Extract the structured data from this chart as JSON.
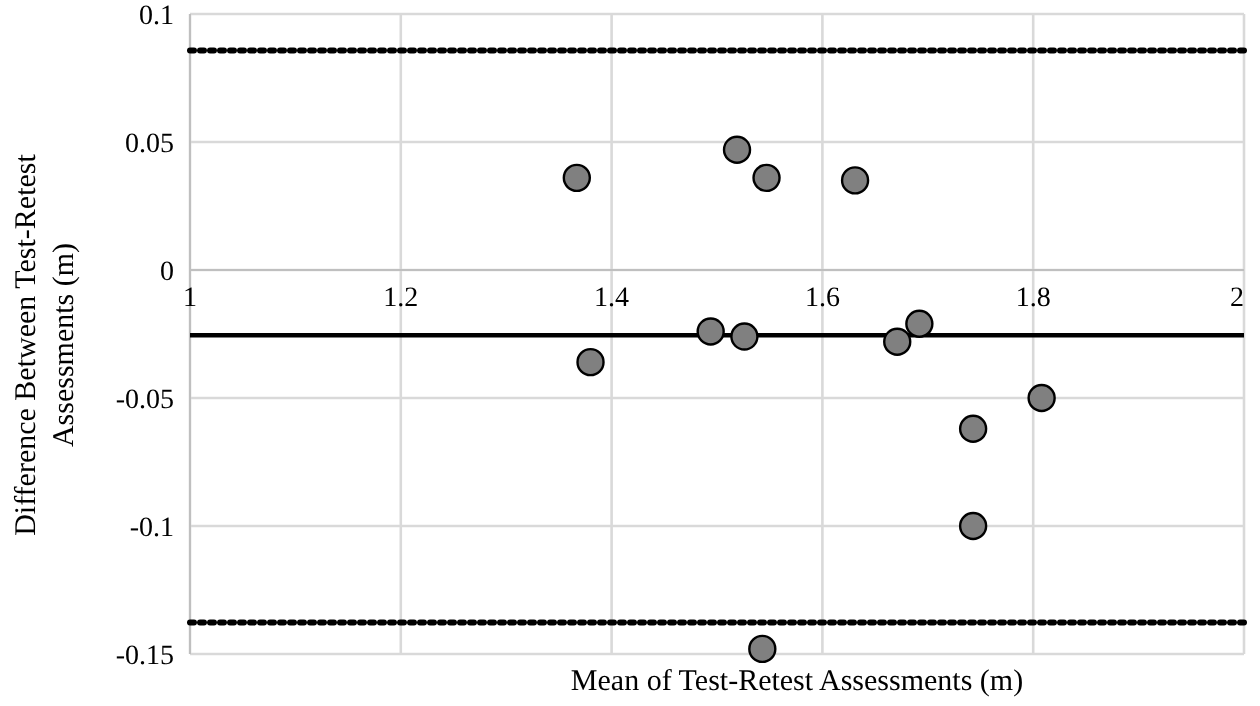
{
  "chart_data": {
    "type": "scatter",
    "xlabel": "Mean of Test-Retest Assessments (m)",
    "ylabel": "Difference Between Test-Retest Assessments (m)",
    "x": [
      1.367,
      1.519,
      1.547,
      1.631,
      1.494,
      1.526,
      1.671,
      1.692,
      1.38,
      1.743,
      1.808,
      1.743,
      1.543
    ],
    "series": [
      {
        "color": "#808080",
        "values": [
          0.036,
          0.047,
          0.036,
          0.035,
          -0.024,
          -0.026,
          -0.028,
          -0.021,
          -0.036,
          -0.062,
          -0.05,
          -0.1,
          -0.148
        ]
      }
    ],
    "xlim": [
      1,
      2
    ],
    "xticks": [
      1,
      1.2,
      1.4,
      1.6,
      1.8,
      2
    ],
    "ylim": [
      -0.15,
      0.1
    ],
    "yticks": [
      -0.15,
      -0.1,
      -0.05,
      0,
      0.05,
      0.1
    ],
    "grid": true,
    "marker": "circle",
    "ref_lines": [
      {
        "axis": "y",
        "value": -0.0255,
        "color": "#000000",
        "line_style": "solid"
      },
      {
        "axis": "y",
        "value": 0.0857,
        "color": "#000000",
        "line_style": "dotted"
      },
      {
        "axis": "y",
        "value": -0.1377,
        "color": "#000000",
        "line_style": "dotted"
      }
    ]
  }
}
